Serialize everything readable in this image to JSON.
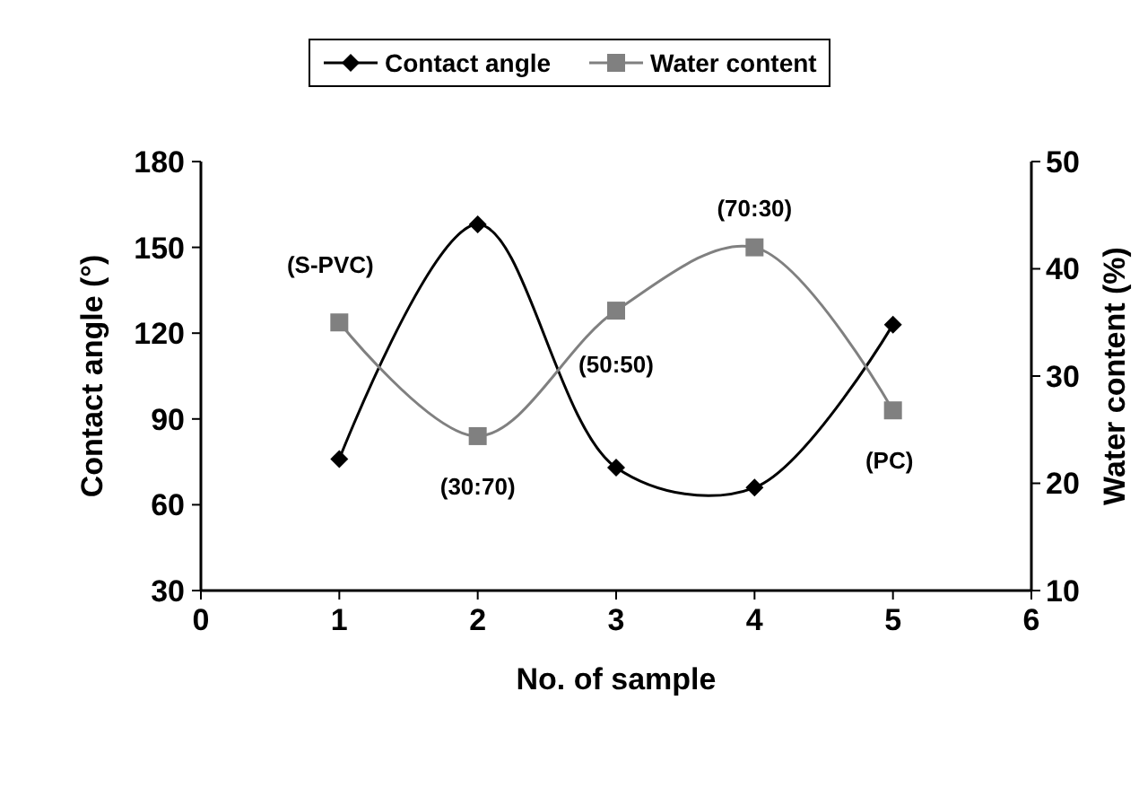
{
  "chart_data": {
    "type": "line",
    "xlabel": "No. of sample",
    "ylabel": "Contact angle (°)",
    "y2label": "Water content (%)",
    "x": [
      1,
      2,
      3,
      4,
      5
    ],
    "series": [
      {
        "name": "Contact angle",
        "color": "#000000",
        "marker": "diamond",
        "values": [
          76,
          158,
          73,
          66,
          123
        ]
      },
      {
        "name": "Water content",
        "color": "#808080",
        "marker": "square",
        "axis": "y2",
        "values": [
          35,
          24.4,
          36.1,
          42,
          26.8
        ]
      }
    ],
    "xlim": [
      0,
      6
    ],
    "xticks": [
      0,
      1,
      2,
      3,
      4,
      5,
      6
    ],
    "ylim": [
      30,
      180
    ],
    "yticks": [
      30,
      60,
      90,
      120,
      150,
      180
    ],
    "y2lim": [
      10,
      50
    ],
    "y2ticks": [
      10,
      20,
      30,
      40,
      50
    ],
    "annotations": [
      "(S-PVC)",
      "(30:70)",
      "(50:50)",
      "(70:30)",
      "(PC)"
    ],
    "legend": "top",
    "grid": false
  }
}
